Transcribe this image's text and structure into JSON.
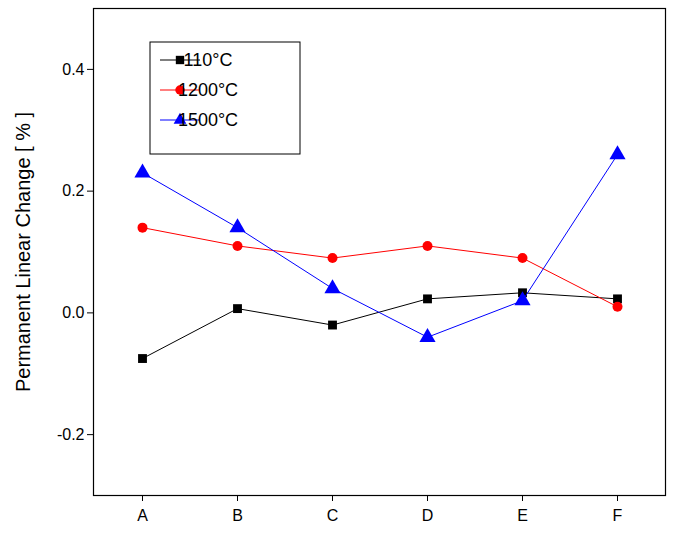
{
  "chart_data": {
    "type": "line",
    "y_label": "Permanent Linear Change [ % ]",
    "categories": [
      "A",
      "B",
      "C",
      "D",
      "E",
      "F"
    ],
    "series": [
      {
        "name": "110°C",
        "color": "#000000",
        "marker": "square",
        "values": [
          -0.075,
          0.007,
          -0.02,
          0.023,
          0.033,
          0.023
        ]
      },
      {
        "name": "1200°C",
        "color": "#ff0000",
        "marker": "circle",
        "values": [
          0.14,
          0.11,
          0.09,
          0.11,
          0.09,
          0.01
        ]
      },
      {
        "name": "1500°C",
        "color": "#0000ff",
        "marker": "triangle",
        "values": [
          0.23,
          0.14,
          0.04,
          -0.04,
          0.02,
          0.26
        ]
      }
    ],
    "ylim": [
      -0.3,
      0.5
    ],
    "yticks": [
      -0.2,
      {
        "value": 0,
        "label": "0.0"
      },
      0.2,
      0.4
    ],
    "legend": "upper left",
    "grid": false
  }
}
